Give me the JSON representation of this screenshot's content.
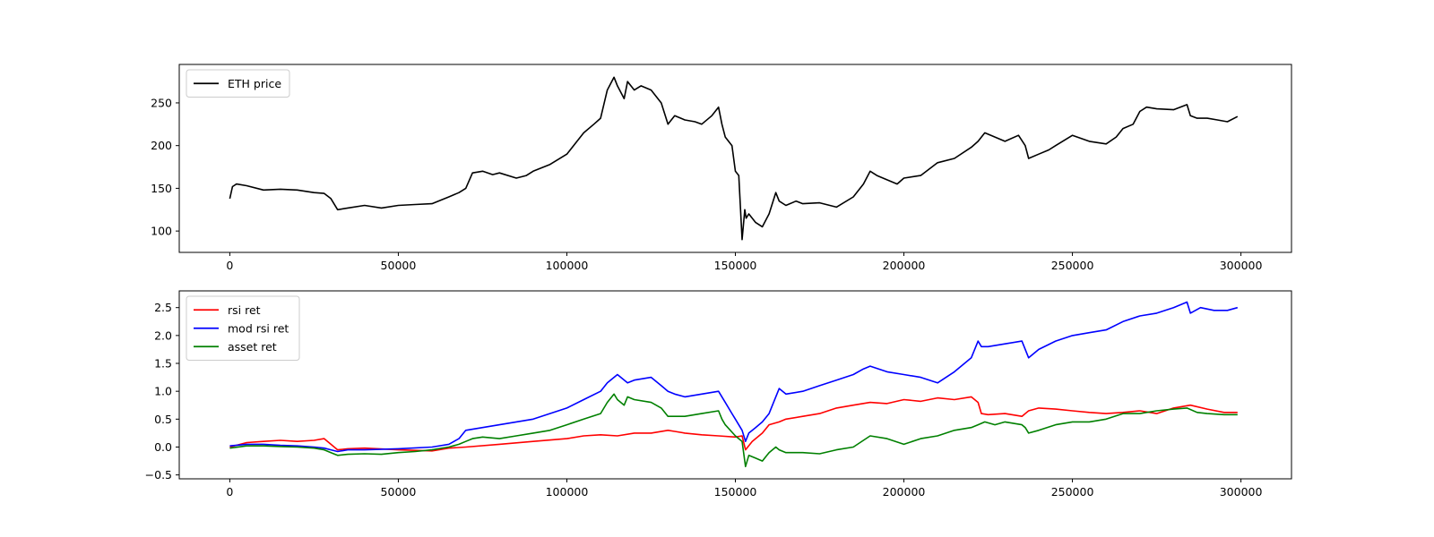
{
  "chart_data": [
    {
      "type": "line",
      "title": "",
      "xlabel": "",
      "ylabel": "",
      "xlim": [
        -15000,
        315000
      ],
      "ylim": [
        75,
        295
      ],
      "xticks": [
        0,
        50000,
        100000,
        150000,
        200000,
        250000,
        300000
      ],
      "yticks": [
        100,
        150,
        200,
        250
      ],
      "grid": false,
      "legend_position": "top-left",
      "series": [
        {
          "name": "ETH price",
          "color": "#000000",
          "x": [
            0,
            800,
            2000,
            5000,
            10000,
            15000,
            20000,
            25000,
            28000,
            30000,
            32000,
            35000,
            40000,
            45000,
            50000,
            55000,
            60000,
            65000,
            68000,
            70000,
            72000,
            75000,
            78000,
            80000,
            85000,
            88000,
            90000,
            95000,
            100000,
            103000,
            105000,
            108000,
            110000,
            112000,
            114000,
            115000,
            117000,
            118000,
            120000,
            122000,
            125000,
            128000,
            130000,
            132000,
            135000,
            138000,
            140000,
            143000,
            145000,
            146000,
            147000,
            149000,
            150000,
            151000,
            152000,
            152800,
            153200,
            154000,
            156000,
            158000,
            160000,
            162000,
            163000,
            165000,
            168000,
            170000,
            175000,
            180000,
            185000,
            188000,
            190000,
            192000,
            195000,
            198000,
            200000,
            205000,
            210000,
            215000,
            220000,
            222000,
            224000,
            227000,
            230000,
            234000,
            236000,
            237000,
            240000,
            243000,
            245000,
            250000,
            255000,
            260000,
            263000,
            265000,
            268000,
            270000,
            272000,
            275000,
            280000,
            284000,
            285000,
            287000,
            290000,
            293000,
            296000,
            299000
          ],
          "y": [
            138,
            152,
            155,
            153,
            148,
            149,
            148,
            145,
            144,
            138,
            125,
            127,
            130,
            127,
            130,
            131,
            132,
            140,
            145,
            150,
            168,
            170,
            166,
            168,
            162,
            165,
            170,
            178,
            190,
            205,
            215,
            225,
            232,
            265,
            280,
            270,
            255,
            275,
            265,
            270,
            265,
            250,
            225,
            235,
            230,
            228,
            225,
            235,
            245,
            225,
            210,
            200,
            170,
            165,
            90,
            125,
            115,
            120,
            110,
            105,
            120,
            145,
            135,
            130,
            135,
            132,
            133,
            128,
            140,
            155,
            170,
            165,
            160,
            155,
            162,
            165,
            180,
            185,
            198,
            205,
            215,
            210,
            205,
            212,
            200,
            185,
            190,
            195,
            200,
            212,
            205,
            202,
            210,
            220,
            225,
            240,
            245,
            243,
            242,
            248,
            235,
            232,
            232,
            230,
            228,
            234
          ]
        }
      ]
    },
    {
      "type": "line",
      "title": "",
      "xlabel": "",
      "ylabel": "",
      "xlim": [
        -15000,
        315000
      ],
      "ylim": [
        -0.57,
        2.8
      ],
      "xticks": [
        0,
        50000,
        100000,
        150000,
        200000,
        250000,
        300000
      ],
      "yticks": [
        -0.5,
        0.0,
        0.5,
        1.0,
        1.5,
        2.0,
        2.5
      ],
      "grid": false,
      "legend_position": "top-left",
      "series": [
        {
          "name": "rsi ret",
          "color": "#ff0000",
          "x": [
            0,
            5000,
            10000,
            15000,
            20000,
            25000,
            28000,
            30000,
            32000,
            35000,
            40000,
            50000,
            60000,
            65000,
            70000,
            80000,
            90000,
            100000,
            105000,
            110000,
            115000,
            120000,
            125000,
            130000,
            132000,
            135000,
            140000,
            145000,
            150000,
            152000,
            153000,
            155000,
            158000,
            160000,
            163000,
            165000,
            170000,
            175000,
            180000,
            185000,
            190000,
            195000,
            200000,
            205000,
            210000,
            215000,
            220000,
            222000,
            223000,
            225000,
            230000,
            235000,
            237000,
            240000,
            245000,
            250000,
            255000,
            260000,
            265000,
            270000,
            275000,
            280000,
            285000,
            290000,
            295000,
            299000
          ],
          "y": [
            0.0,
            0.08,
            0.1,
            0.12,
            0.1,
            0.12,
            0.15,
            0.05,
            -0.05,
            -0.03,
            -0.02,
            -0.05,
            -0.07,
            -0.02,
            0.0,
            0.05,
            0.1,
            0.15,
            0.2,
            0.22,
            0.2,
            0.25,
            0.25,
            0.3,
            0.28,
            0.25,
            0.22,
            0.2,
            0.18,
            0.2,
            -0.05,
            0.1,
            0.25,
            0.4,
            0.45,
            0.5,
            0.55,
            0.6,
            0.7,
            0.75,
            0.8,
            0.78,
            0.85,
            0.82,
            0.88,
            0.85,
            0.9,
            0.8,
            0.6,
            0.58,
            0.6,
            0.55,
            0.65,
            0.7,
            0.68,
            0.65,
            0.62,
            0.6,
            0.62,
            0.65,
            0.6,
            0.7,
            0.75,
            0.68,
            0.62,
            0.62
          ]
        },
        {
          "name": "mod rsi ret",
          "color": "#0000ff",
          "x": [
            0,
            5000,
            10000,
            15000,
            20000,
            25000,
            28000,
            30000,
            32000,
            35000,
            40000,
            50000,
            60000,
            65000,
            68000,
            70000,
            75000,
            80000,
            90000,
            100000,
            105000,
            110000,
            112000,
            115000,
            118000,
            120000,
            125000,
            128000,
            130000,
            132000,
            135000,
            140000,
            145000,
            147000,
            149000,
            150000,
            152000,
            153000,
            154000,
            156000,
            158000,
            160000,
            162000,
            163000,
            165000,
            170000,
            175000,
            180000,
            185000,
            188000,
            190000,
            195000,
            200000,
            205000,
            210000,
            215000,
            220000,
            222000,
            223000,
            225000,
            230000,
            235000,
            237000,
            240000,
            245000,
            250000,
            255000,
            260000,
            265000,
            270000,
            275000,
            280000,
            284000,
            285000,
            288000,
            292000,
            296000,
            299000
          ],
          "y": [
            0.02,
            0.05,
            0.05,
            0.03,
            0.02,
            0.0,
            -0.02,
            -0.05,
            -0.08,
            -0.05,
            -0.05,
            -0.03,
            0.0,
            0.05,
            0.15,
            0.3,
            0.35,
            0.4,
            0.5,
            0.7,
            0.85,
            1.0,
            1.15,
            1.3,
            1.15,
            1.2,
            1.25,
            1.1,
            1.0,
            0.95,
            0.9,
            0.95,
            1.0,
            0.8,
            0.6,
            0.5,
            0.3,
            0.1,
            0.25,
            0.35,
            0.45,
            0.6,
            0.9,
            1.05,
            0.95,
            1.0,
            1.1,
            1.2,
            1.3,
            1.4,
            1.45,
            1.35,
            1.3,
            1.25,
            1.15,
            1.35,
            1.6,
            1.9,
            1.8,
            1.8,
            1.85,
            1.9,
            1.6,
            1.75,
            1.9,
            2.0,
            2.05,
            2.1,
            2.25,
            2.35,
            2.4,
            2.5,
            2.6,
            2.4,
            2.5,
            2.45,
            2.45,
            2.5
          ]
        },
        {
          "name": "asset ret",
          "color": "#008000",
          "x": [
            0,
            5000,
            10000,
            15000,
            20000,
            25000,
            28000,
            30000,
            32000,
            35000,
            40000,
            45000,
            50000,
            55000,
            60000,
            65000,
            68000,
            70000,
            72000,
            75000,
            80000,
            85000,
            90000,
            95000,
            100000,
            105000,
            110000,
            112000,
            114000,
            115000,
            117000,
            118000,
            120000,
            125000,
            128000,
            130000,
            135000,
            140000,
            145000,
            146000,
            147000,
            150000,
            152000,
            153000,
            154000,
            156000,
            158000,
            160000,
            162000,
            163000,
            165000,
            170000,
            175000,
            180000,
            185000,
            190000,
            195000,
            200000,
            205000,
            210000,
            215000,
            220000,
            222000,
            224000,
            227000,
            230000,
            235000,
            236000,
            237000,
            240000,
            245000,
            250000,
            255000,
            260000,
            265000,
            270000,
            275000,
            280000,
            284000,
            287000,
            290000,
            295000,
            299000
          ],
          "y": [
            -0.02,
            0.02,
            0.02,
            0.01,
            0.0,
            -0.02,
            -0.05,
            -0.1,
            -0.15,
            -0.13,
            -0.12,
            -0.13,
            -0.1,
            -0.08,
            -0.05,
            0.0,
            0.05,
            0.1,
            0.15,
            0.18,
            0.15,
            0.2,
            0.25,
            0.3,
            0.4,
            0.5,
            0.6,
            0.8,
            0.95,
            0.85,
            0.75,
            0.9,
            0.85,
            0.8,
            0.7,
            0.55,
            0.55,
            0.6,
            0.65,
            0.5,
            0.4,
            0.2,
            0.1,
            -0.35,
            -0.15,
            -0.2,
            -0.25,
            -0.1,
            0.0,
            -0.05,
            -0.1,
            -0.1,
            -0.12,
            -0.05,
            0.0,
            0.2,
            0.15,
            0.05,
            0.15,
            0.2,
            0.3,
            0.35,
            0.4,
            0.45,
            0.4,
            0.45,
            0.4,
            0.35,
            0.25,
            0.3,
            0.4,
            0.45,
            0.45,
            0.5,
            0.6,
            0.6,
            0.65,
            0.68,
            0.7,
            0.62,
            0.6,
            0.58,
            0.58
          ]
        }
      ]
    }
  ]
}
